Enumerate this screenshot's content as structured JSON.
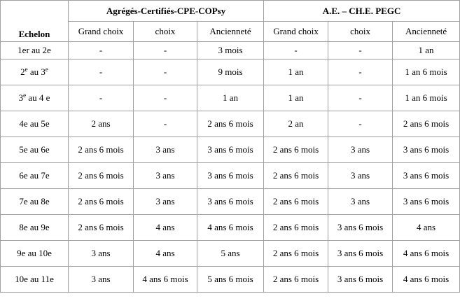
{
  "header": {
    "echelon": "Echelon",
    "groups": [
      "Agrégés-Certifiés-CPE-COPsy",
      "A.E. – CH.E. PEGC"
    ],
    "subheaders": [
      "Grand choix",
      "choix",
      "Ancienneté",
      "Grand choix",
      "choix",
      "Ancienneté"
    ]
  },
  "rows": [
    {
      "echelon": [
        "1er au 2e"
      ],
      "cells": [
        "-",
        "-",
        "3 mois",
        "-",
        "-",
        "1 an"
      ]
    },
    {
      "echelon": [
        "2",
        "e",
        " au 3",
        "e"
      ],
      "cells": [
        "-",
        "-",
        "9 mois",
        "1 an",
        "-",
        "1 an 6 mois"
      ]
    },
    {
      "echelon": [
        "3",
        "e",
        " au 4 e"
      ],
      "cells": [
        "-",
        "-",
        "1 an",
        "1 an",
        "-",
        "1 an 6 mois"
      ]
    },
    {
      "echelon": [
        "4e au 5e"
      ],
      "cells": [
        "2 ans",
        "-",
        "2 ans 6 mois",
        "2 an",
        "-",
        "2 ans 6 mois"
      ]
    },
    {
      "echelon": [
        "5e au 6e"
      ],
      "cells": [
        "2 ans 6 mois",
        "3 ans",
        "3 ans 6 mois",
        "2 ans 6 mois",
        "3 ans",
        "3 ans 6 mois"
      ]
    },
    {
      "echelon": [
        "6e au 7e"
      ],
      "cells": [
        "2 ans 6 mois",
        "3 ans",
        "3 ans 6 mois",
        "2 ans 6 mois",
        "3 ans",
        "3 ans 6 mois"
      ]
    },
    {
      "echelon": [
        "7e au 8e"
      ],
      "cells": [
        "2 ans 6 mois",
        "3 ans",
        "3 ans 6 mois",
        "2 ans 6 mois",
        "3 ans",
        "3 ans 6 mois"
      ]
    },
    {
      "echelon": [
        "8e au 9e"
      ],
      "cells": [
        "2 ans 6 mois",
        "4 ans",
        "4 ans 6 mois",
        "2 ans 6 mois",
        "3 ans 6 mois",
        "4 ans"
      ]
    },
    {
      "echelon": [
        "9e au 10e"
      ],
      "cells": [
        "3 ans",
        "4 ans",
        "5 ans",
        "2 ans 6 mois",
        "3 ans 6 mois",
        "4 ans 6 mois"
      ]
    },
    {
      "echelon": [
        "10e au 11e"
      ],
      "cells": [
        "3 ans",
        "4 ans 6 mois",
        "5 ans 6 mois",
        "2 ans 6 mois",
        "3 ans 6 mois",
        "4 ans 6 mois"
      ]
    }
  ]
}
